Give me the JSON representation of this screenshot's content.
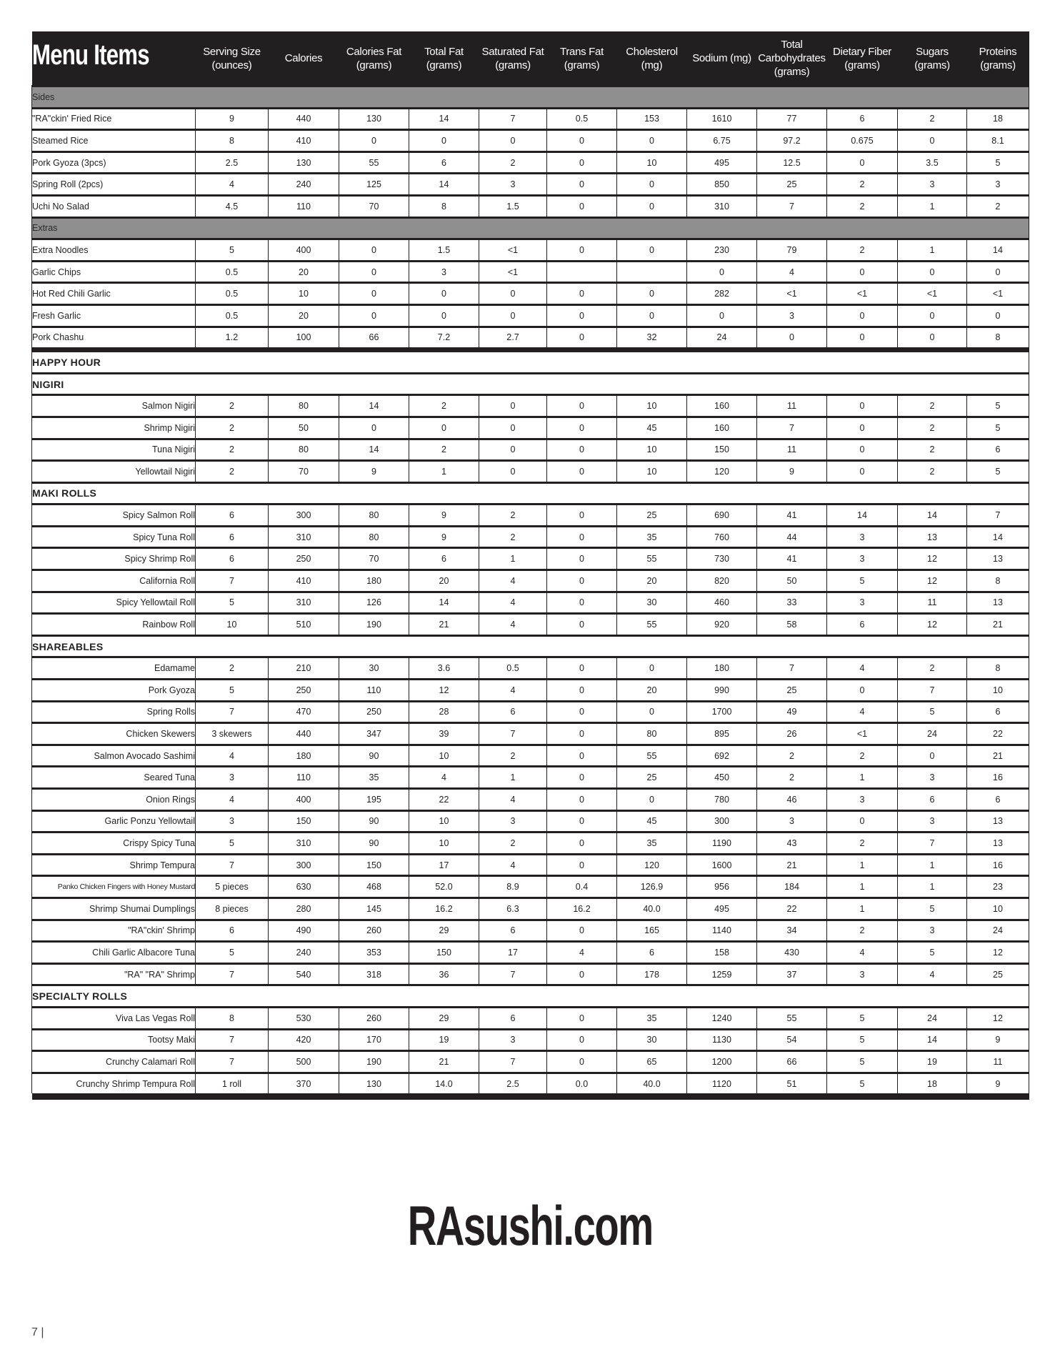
{
  "header": {
    "title": "Menu Items",
    "columns": [
      [
        "Serving Size",
        "(ounces)"
      ],
      [
        "Calories"
      ],
      [
        "Calories Fat",
        "(grams)"
      ],
      [
        "Total Fat",
        "(grams)"
      ],
      [
        "Saturated Fat",
        "(grams)"
      ],
      [
        "Trans Fat",
        "(grams)"
      ],
      [
        "Cholesterol",
        "(mg)"
      ],
      [
        "Sodium  (mg)"
      ],
      [
        "Total",
        "Carbohydrates",
        "(grams)"
      ],
      [
        "Dietary Fiber",
        "(grams)"
      ],
      [
        "Sugars",
        "(grams)"
      ],
      [
        "Proteins",
        "(grams)"
      ]
    ]
  },
  "sections": [
    {
      "type": "category",
      "label": "Sides",
      "align": "left",
      "items": [
        [
          "\"RA\"ckin' Fried Rice",
          "9",
          "440",
          "130",
          "14",
          "7",
          "0.5",
          "153",
          "1610",
          "77",
          "6",
          "2",
          "18"
        ],
        [
          "Steamed Rice",
          "8",
          "410",
          "0",
          "0",
          "0",
          "0",
          "0",
          "6.75",
          "97.2",
          "0.675",
          "0",
          "8.1"
        ],
        [
          "Pork Gyoza (3pcs)",
          "2.5",
          "130",
          "55",
          "6",
          "2",
          "0",
          "10",
          "495",
          "12.5",
          "0",
          "3.5",
          "5"
        ],
        [
          "Spring Roll (2pcs)",
          "4",
          "240",
          "125",
          "14",
          "3",
          "0",
          "0",
          "850",
          "25",
          "2",
          "3",
          "3"
        ],
        [
          "Uchi No Salad",
          "4.5",
          "110",
          "70",
          "8",
          "1.5",
          "0",
          "0",
          "310",
          "7",
          "2",
          "1",
          "2"
        ]
      ]
    },
    {
      "type": "category",
      "label": "Extras",
      "align": "left",
      "items": [
        [
          "Extra Noodles",
          "5",
          "400",
          "0",
          "1.5",
          "<1",
          "0",
          "0",
          "230",
          "79",
          "2",
          "1",
          "14"
        ],
        [
          "Garlic Chips",
          "0.5",
          "20",
          "0",
          "3",
          "<1",
          "",
          "",
          "0",
          "4",
          "0",
          "0",
          "0"
        ],
        [
          "Hot Red Chili Garlic",
          "0.5",
          "10",
          "0",
          "0",
          "0",
          "0",
          "0",
          "282",
          "<1",
          "<1",
          "<1",
          "<1"
        ],
        [
          "Fresh Garlic",
          "0.5",
          "20",
          "0",
          "0",
          "0",
          "0",
          "0",
          "0",
          "3",
          "0",
          "0",
          "0"
        ],
        [
          "Pork Chashu",
          "1.2",
          "100",
          "66",
          "7.2",
          "2.7",
          "0",
          "32",
          "24",
          "0",
          "0",
          "0",
          "8"
        ]
      ]
    },
    {
      "type": "section",
      "label": "HAPPY HOUR",
      "separator": true,
      "items": []
    },
    {
      "type": "section",
      "label": "NIGIRI",
      "align": "right",
      "items": [
        [
          "Salmon Nigiri",
          "2",
          "80",
          "14",
          "2",
          "0",
          "0",
          "10",
          "160",
          "11",
          "0",
          "2",
          "5"
        ],
        [
          "Shrimp Nigiri",
          "2",
          "50",
          "0",
          "0",
          "0",
          "0",
          "45",
          "160",
          "7",
          "0",
          "2",
          "5"
        ],
        [
          "Tuna Nigiri",
          "2",
          "80",
          "14",
          "2",
          "0",
          "0",
          "10",
          "150",
          "11",
          "0",
          "2",
          "6"
        ],
        [
          "Yellowtail Nigiri",
          "2",
          "70",
          "9",
          "1",
          "0",
          "0",
          "10",
          "120",
          "9",
          "0",
          "2",
          "5"
        ]
      ]
    },
    {
      "type": "section",
      "label": "MAKI ROLLS",
      "align": "right",
      "items": [
        [
          "Spicy Salmon Roll",
          "6",
          "300",
          "80",
          "9",
          "2",
          "0",
          "25",
          "690",
          "41",
          "14",
          "14",
          "7"
        ],
        [
          "Spicy Tuna Roll",
          "6",
          "310",
          "80",
          "9",
          "2",
          "0",
          "35",
          "760",
          "44",
          "3",
          "13",
          "14"
        ],
        [
          "Spicy Shrimp Roll",
          "6",
          "250",
          "70",
          "6",
          "1",
          "0",
          "55",
          "730",
          "41",
          "3",
          "12",
          "13"
        ],
        [
          "California Roll",
          "7",
          "410",
          "180",
          "20",
          "4",
          "0",
          "20",
          "820",
          "50",
          "5",
          "12",
          "8"
        ],
        [
          "Spicy Yellowtail Roll",
          "5",
          "310",
          "126",
          "14",
          "4",
          "0",
          "30",
          "460",
          "33",
          "3",
          "11",
          "13"
        ],
        [
          "Rainbow Roll",
          "10",
          "510",
          "190",
          "21",
          "4",
          "0",
          "55",
          "920",
          "58",
          "6",
          "12",
          "21"
        ]
      ]
    },
    {
      "type": "section",
      "label": "SHAREABLES",
      "align": "right",
      "items": [
        [
          "Edamame",
          "2",
          "210",
          "30",
          "3.6",
          "0.5",
          "0",
          "0",
          "180",
          "7",
          "4",
          "2",
          "8"
        ],
        [
          "Pork Gyoza",
          "5",
          "250",
          "110",
          "12",
          "4",
          "0",
          "20",
          "990",
          "25",
          "0",
          "7",
          "10"
        ],
        [
          "Spring Rolls",
          "7",
          "470",
          "250",
          "28",
          "6",
          "0",
          "0",
          "1700",
          "49",
          "4",
          "5",
          "6"
        ],
        [
          "Chicken Skewers",
          "3 skewers",
          "440",
          "347",
          "39",
          "7",
          "0",
          "80",
          "895",
          "26",
          "<1",
          "24",
          "22"
        ],
        [
          "Salmon Avocado Sashimi",
          "4",
          "180",
          "90",
          "10",
          "2",
          "0",
          "55",
          "692",
          "2",
          "2",
          "0",
          "21"
        ],
        [
          "Seared Tuna",
          "3",
          "110",
          "35",
          "4",
          "1",
          "0",
          "25",
          "450",
          "2",
          "1",
          "3",
          "16"
        ],
        [
          "Onion Rings",
          "4",
          "400",
          "195",
          "22",
          "4",
          "0",
          "0",
          "780",
          "46",
          "3",
          "6",
          "6"
        ],
        [
          "Garlic Ponzu Yellowtail",
          "3",
          "150",
          "90",
          "10",
          "3",
          "0",
          "45",
          "300",
          "3",
          "0",
          "3",
          "13"
        ],
        [
          "Crispy Spicy Tuna",
          "5",
          "310",
          "90",
          "10",
          "2",
          "0",
          "35",
          "1190",
          "43",
          "2",
          "7",
          "13"
        ],
        [
          "Shrimp Tempura",
          "7",
          "300",
          "150",
          "17",
          "4",
          "0",
          "120",
          "1600",
          "21",
          "1",
          "1",
          "16"
        ],
        [
          "Panko Chicken Fingers with Honey Mustard",
          "5 pieces",
          "630",
          "468",
          "52.0",
          "8.9",
          "0.4",
          "126.9",
          "956",
          "184",
          "1",
          "1",
          "23"
        ],
        [
          "Shrimp Shumai Dumplings",
          "8 pieces",
          "280",
          "145",
          "16.2",
          "6.3",
          "16.2",
          "40.0",
          "495",
          "22",
          "1",
          "5",
          "10"
        ],
        [
          "\"RA\"ckin' Shrimp",
          "6",
          "490",
          "260",
          "29",
          "6",
          "0",
          "165",
          "1140",
          "34",
          "2",
          "3",
          "24"
        ],
        [
          "Chili Garlic Albacore Tuna",
          "5",
          "240",
          "353",
          "150",
          "17",
          "4",
          "6",
          "158",
          "430",
          "4",
          "5",
          "12"
        ],
        [
          "\"RA\" \"RA\" Shrimp",
          "7",
          "540",
          "318",
          "36",
          "7",
          "0",
          "178",
          "1259",
          "37",
          "3",
          "4",
          "25"
        ]
      ]
    },
    {
      "type": "section",
      "label": "SPECIALTY ROLLS",
      "align": "right",
      "items": [
        [
          "Viva Las Vegas Roll",
          "8",
          "530",
          "260",
          "29",
          "6",
          "0",
          "35",
          "1240",
          "55",
          "5",
          "24",
          "12"
        ],
        [
          "Tootsy Maki",
          "7",
          "420",
          "170",
          "19",
          "3",
          "0",
          "30",
          "1130",
          "54",
          "5",
          "14",
          "9"
        ],
        [
          "Crunchy Calamari Roll",
          "7",
          "500",
          "190",
          "21",
          "7",
          "0",
          "65",
          "1200",
          "66",
          "5",
          "19",
          "11"
        ],
        [
          "Crunchy Shrimp Tempura Roll",
          "1 roll",
          "370",
          "130",
          "14.0",
          "2.5",
          "0.0",
          "40.0",
          "1120",
          "51",
          "5",
          "18",
          "9"
        ]
      ]
    }
  ],
  "footer": {
    "logo": "RAsushi.com",
    "page_number": "7 |"
  },
  "colors": {
    "header_bg": "#231f20",
    "category_bg": "#8f8f8f",
    "text": "#222222"
  }
}
